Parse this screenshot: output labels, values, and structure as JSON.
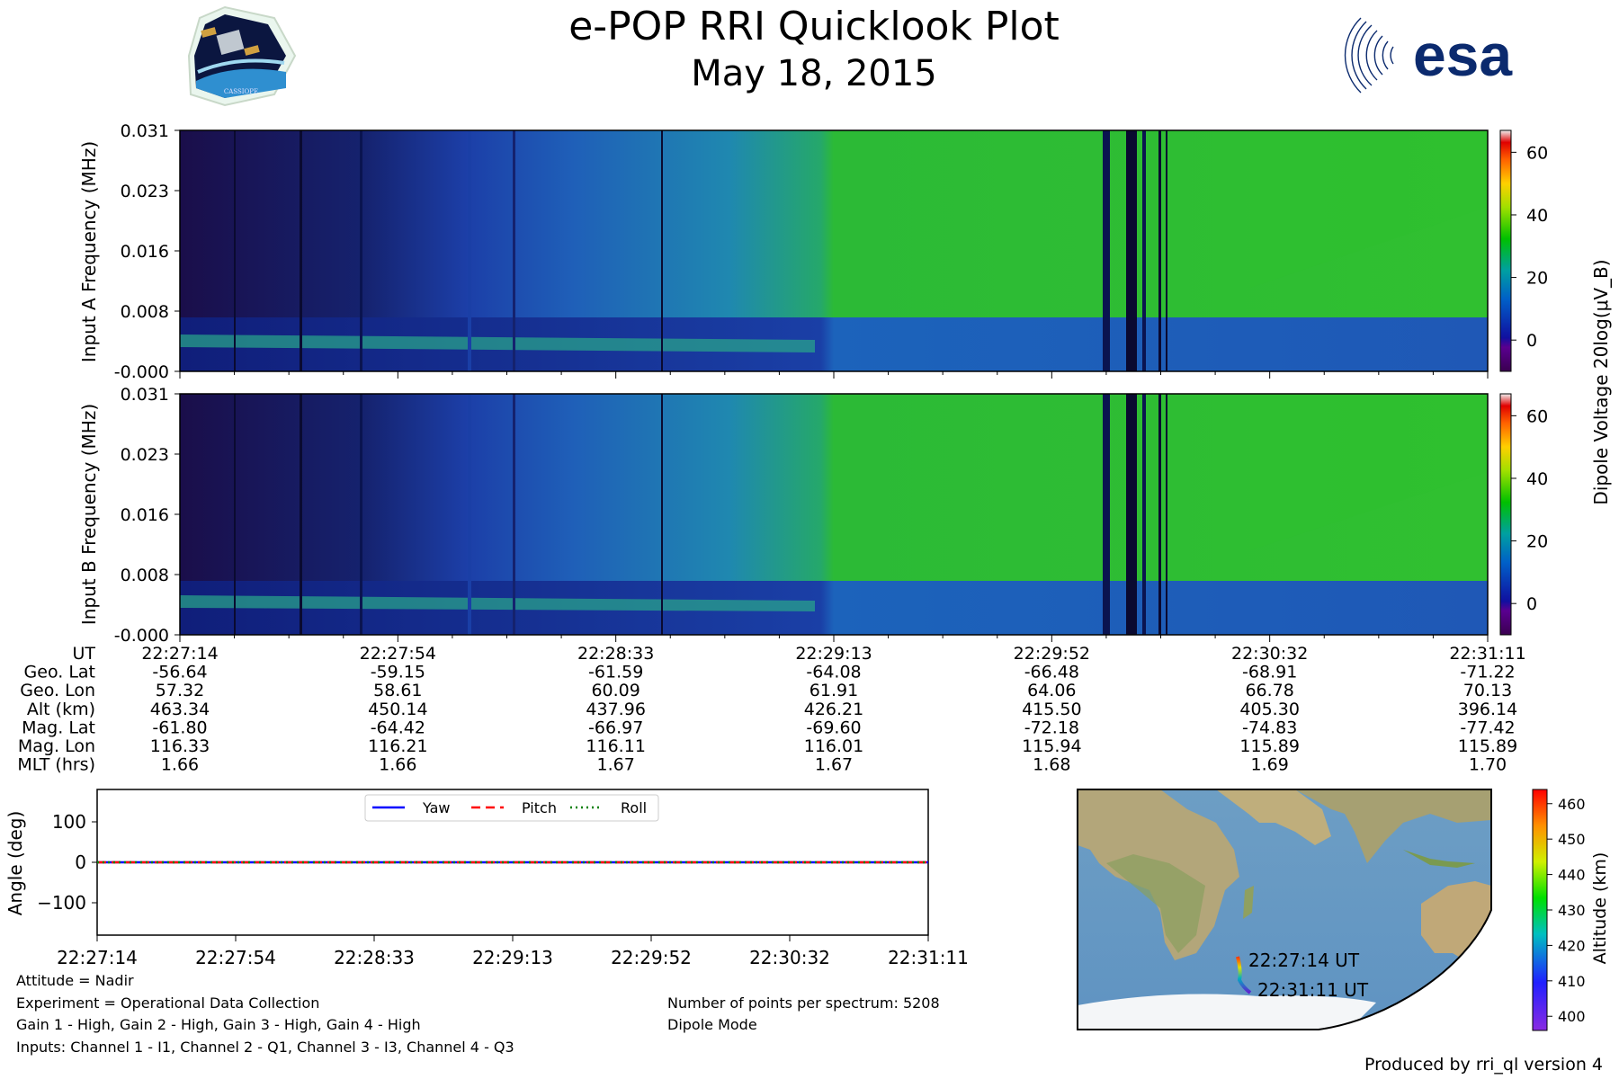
{
  "header": {
    "title": "e-POP RRI Quicklook Plot",
    "date": "May 18, 2015",
    "left_logo_text": "CASSIOPE",
    "right_logo_text": "esa"
  },
  "colors": {
    "spec_dark": "#16083a",
    "spec_blue": "#1f3fb0",
    "spec_teal": "#1a7fb8",
    "spec_green": "#2db82d",
    "trajectory": "#7a2fd0"
  },
  "chart_data": [
    {
      "type": "heatmap",
      "name": "input-a",
      "ylabel": "Input A Frequency (MHz)",
      "yticks": [
        "0.031",
        "0.023",
        "0.016",
        "0.008",
        "-0.000"
      ],
      "ylim": [
        0,
        0.031
      ],
      "xlim": [
        "22:27:14",
        "22:31:11"
      ],
      "colorbar": {
        "label": "Dipole Voltage 20log(μV_B)",
        "ticks": [
          "60",
          "40",
          "20",
          "0"
        ],
        "range": [
          -10,
          67
        ]
      }
    },
    {
      "type": "heatmap",
      "name": "input-b",
      "ylabel": "Input B Frequency (MHz)",
      "yticks": [
        "0.031",
        "0.023",
        "0.016",
        "0.008",
        "-0.000"
      ],
      "ylim": [
        0,
        0.031
      ],
      "xlim": [
        "22:27:14",
        "22:31:11"
      ],
      "colorbar": {
        "ticks": [
          "60",
          "40",
          "20",
          "0"
        ],
        "range": [
          -10,
          67
        ]
      }
    },
    {
      "type": "table",
      "name": "orbit-table",
      "rows": [
        {
          "label": "UT",
          "values": [
            "22:27:14",
            "22:27:54",
            "22:28:33",
            "22:29:13",
            "22:29:52",
            "22:30:32",
            "22:31:11"
          ]
        },
        {
          "label": "Geo. Lat",
          "values": [
            "-56.64",
            "-59.15",
            "-61.59",
            "-64.08",
            "-66.48",
            "-68.91",
            "-71.22"
          ]
        },
        {
          "label": "Geo. Lon",
          "values": [
            "57.32",
            "58.61",
            "60.09",
            "61.91",
            "64.06",
            "66.78",
            "70.13"
          ]
        },
        {
          "label": "Alt (km)",
          "values": [
            "463.34",
            "450.14",
            "437.96",
            "426.21",
            "415.50",
            "405.30",
            "396.14"
          ]
        },
        {
          "label": "Mag. Lat",
          "values": [
            "-61.80",
            "-64.42",
            "-66.97",
            "-69.60",
            "-72.18",
            "-74.83",
            "-77.42"
          ]
        },
        {
          "label": "Mag. Lon",
          "values": [
            "116.33",
            "116.21",
            "116.11",
            "116.01",
            "115.94",
            "115.89",
            "115.89"
          ]
        },
        {
          "label": "MLT (hrs)",
          "values": [
            "1.66",
            "1.66",
            "1.67",
            "1.67",
            "1.68",
            "1.69",
            "1.70"
          ]
        }
      ]
    },
    {
      "type": "line",
      "name": "attitude",
      "ylabel": "Angle (deg)",
      "ylim": [
        -180,
        180
      ],
      "yticks": [
        "100",
        "0",
        "−100"
      ],
      "ytick_values": [
        100,
        0,
        -100
      ],
      "x": [
        "22:27:14",
        "22:27:54",
        "22:28:33",
        "22:29:13",
        "22:29:52",
        "22:30:32",
        "22:31:11"
      ],
      "series": [
        {
          "name": "Yaw",
          "values": [
            0,
            0,
            0,
            0,
            0,
            0,
            0
          ],
          "color": "#0000ff",
          "dash": "solid"
        },
        {
          "name": "Pitch",
          "values": [
            0,
            0,
            0,
            0,
            0,
            0,
            0
          ],
          "color": "#ff0000",
          "dash": "dashed"
        },
        {
          "name": "Roll",
          "values": [
            0,
            0,
            0,
            0,
            0,
            0,
            0
          ],
          "color": "#008000",
          "dash": "dotted"
        }
      ],
      "legend": "top-center"
    },
    {
      "type": "map",
      "name": "ground-track",
      "start_label": "22:27:14 UT",
      "end_label": "22:31:11 UT",
      "colorbar": {
        "label": "Altitude (km)",
        "ticks": [
          "460",
          "450",
          "440",
          "430",
          "420",
          "410",
          "400"
        ],
        "range": [
          396,
          464
        ]
      }
    }
  ],
  "notes": {
    "attitude": "Attitude = Nadir",
    "experiment": "Experiment = Operational Data Collection",
    "gains": "Gain 1 - High, Gain 2 - High, Gain 3 - High, Gain 4 - High",
    "inputs": "Inputs: Channel 1 - I1, Channel 2 - Q1, Channel 3 - I3, Channel 4 - Q3",
    "points": "Number of points per spectrum: 5208",
    "mode": "Dipole Mode",
    "produced_by": "Produced by rri_ql version 4"
  }
}
